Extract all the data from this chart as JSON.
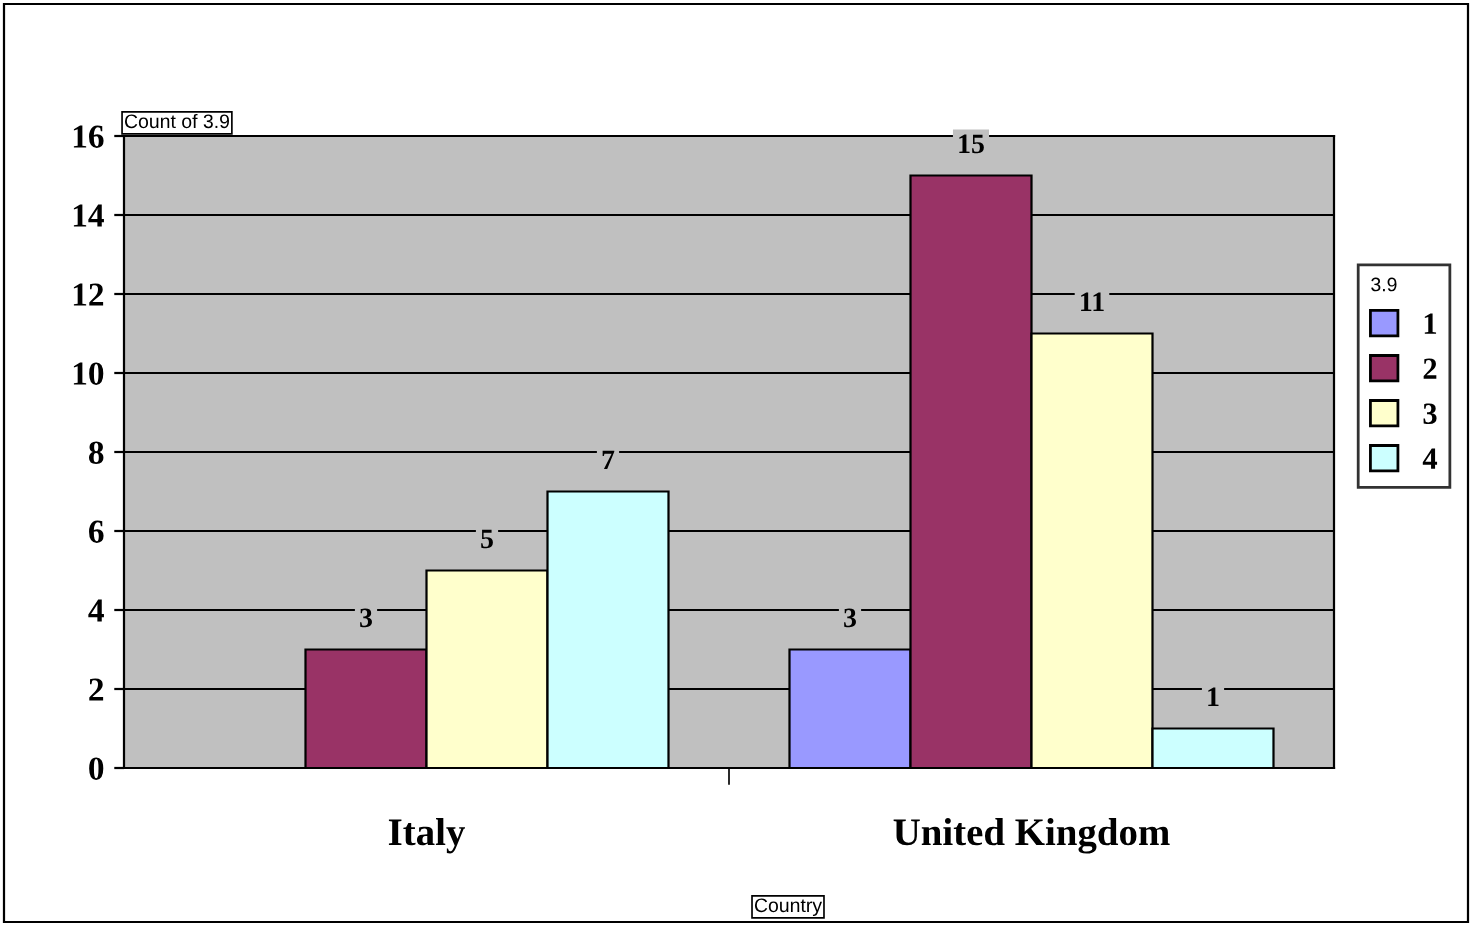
{
  "chart_data": {
    "type": "bar",
    "categories": [
      "Italy",
      "United Kingdom"
    ],
    "xlabel": "Country",
    "ylabel": "Count of 3.9",
    "legend_title": "3.9",
    "series": [
      {
        "name": "1",
        "color": "#9999ff",
        "values": [
          null,
          3
        ]
      },
      {
        "name": "2",
        "color": "#993366",
        "values": [
          3,
          15
        ]
      },
      {
        "name": "3",
        "color": "#ffffcc",
        "values": [
          5,
          11
        ]
      },
      {
        "name": "4",
        "color": "#ccffff",
        "values": [
          7,
          1
        ]
      }
    ],
    "ylim": [
      0,
      16
    ],
    "yticks": [
      0,
      2,
      4,
      6,
      8,
      10,
      12,
      14,
      16
    ],
    "grid": "y",
    "legend": "right",
    "data_labels": true
  }
}
